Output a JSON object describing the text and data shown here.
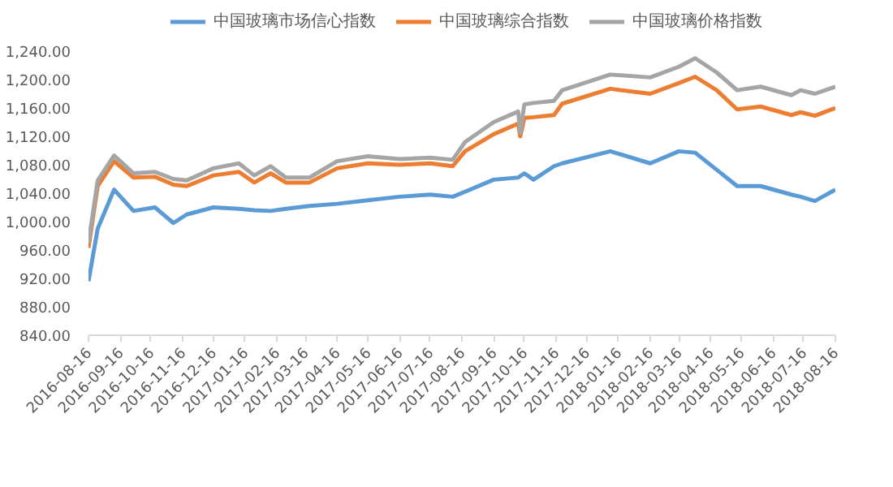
{
  "chart_data": {
    "type": "line",
    "x": [
      "2016-08-16",
      "2016-08-25",
      "2016-09-10",
      "2016-09-29",
      "2016-10-20",
      "2016-11-07",
      "2016-11-20",
      "2016-12-16",
      "2017-01-10",
      "2017-01-25",
      "2017-02-10",
      "2017-02-25",
      "2017-03-20",
      "2017-04-16",
      "2017-05-16",
      "2017-06-16",
      "2017-07-16",
      "2017-08-07",
      "2017-08-19",
      "2017-09-16",
      "2017-10-10",
      "2017-10-12",
      "2017-10-16",
      "2017-10-25",
      "2017-11-14",
      "2017-11-22",
      "2018-01-08",
      "2018-02-16",
      "2018-03-16",
      "2018-04-01",
      "2018-04-22",
      "2018-05-12",
      "2018-06-04",
      "2018-07-04",
      "2018-07-13",
      "2018-07-27",
      "2018-08-16"
    ],
    "series": [
      {
        "name": "中国玻璃市场信心指数",
        "color": "#5b9bd5",
        "values": [
          916,
          990,
          1045,
          1015,
          1020,
          998,
          1010,
          1020,
          1018,
          1016,
          1015,
          1018,
          1022,
          1025,
          1030,
          1035,
          1038,
          1035,
          1042,
          1059,
          1062,
          1064,
          1068,
          1059,
          1078,
          1082,
          1099,
          1082,
          1099,
          1097,
          1073,
          1050,
          1050,
          1038,
          1035,
          1029,
          1045
        ]
      },
      {
        "name": "中国玻璃综合指数",
        "color": "#ed7d31",
        "values": [
          963,
          1050,
          1085,
          1062,
          1063,
          1052,
          1050,
          1065,
          1070,
          1055,
          1068,
          1055,
          1055,
          1075,
          1082,
          1080,
          1082,
          1078,
          1099,
          1123,
          1138,
          1120,
          1146,
          1147,
          1150,
          1166,
          1187,
          1180,
          1195,
          1204,
          1185,
          1158,
          1162,
          1150,
          1154,
          1149,
          1160
        ]
      },
      {
        "name": "中国玻璃价格指数",
        "color": "#a5a5a5",
        "values": [
          970,
          1058,
          1093,
          1068,
          1070,
          1060,
          1058,
          1075,
          1082,
          1065,
          1078,
          1062,
          1062,
          1085,
          1092,
          1088,
          1090,
          1087,
          1112,
          1140,
          1155,
          1125,
          1165,
          1167,
          1170,
          1185,
          1207,
          1203,
          1218,
          1230,
          1210,
          1185,
          1190,
          1178,
          1185,
          1180,
          1190
        ]
      }
    ],
    "xlim": [
      "2016-08-16",
      "2018-08-16"
    ],
    "xticks": [
      "2016-08-16",
      "2016-09-16",
      "2016-10-16",
      "2016-11-16",
      "2016-12-16",
      "2017-01-16",
      "2017-02-16",
      "2017-03-16",
      "2017-04-16",
      "2017-05-16",
      "2017-06-16",
      "2017-07-16",
      "2017-08-16",
      "2017-09-16",
      "2017-10-16",
      "2017-11-16",
      "2017-12-16",
      "2018-01-16",
      "2018-02-16",
      "2018-03-16",
      "2018-04-16",
      "2018-05-16",
      "2018-06-16",
      "2018-07-16",
      "2018-08-16"
    ],
    "ylim": [
      840,
      1240
    ],
    "yticks": [
      {
        "value": 840,
        "label": "840.00"
      },
      {
        "value": 880,
        "label": "880.00"
      },
      {
        "value": 920,
        "label": "920.00"
      },
      {
        "value": 960,
        "label": "960.00"
      },
      {
        "value": 1000,
        "label": "1,000.00"
      },
      {
        "value": 1040,
        "label": "1,040.00"
      },
      {
        "value": 1080,
        "label": "1,080.00"
      },
      {
        "value": 1120,
        "label": "1,120.00"
      },
      {
        "value": 1160,
        "label": "1,160.00"
      },
      {
        "value": 1200,
        "label": "1,200.00"
      },
      {
        "value": 1240,
        "label": "1,240.00"
      }
    ],
    "grid": false,
    "legend": "top",
    "marker": "none",
    "line_style": "solid"
  }
}
